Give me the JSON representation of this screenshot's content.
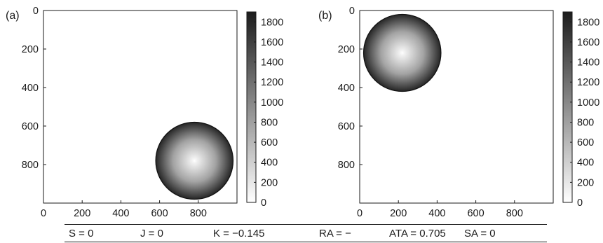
{
  "chart_data": [
    {
      "type": "heatmap",
      "panel_label": "(a)",
      "title": "",
      "xlabel": "",
      "ylabel": "",
      "xlim": [
        0,
        1000
      ],
      "ylim": [
        1000,
        0
      ],
      "x_ticks": [
        0,
        200,
        400,
        600,
        800
      ],
      "y_ticks": [
        0,
        200,
        400,
        600,
        800
      ],
      "disk": {
        "center_x": 780,
        "center_y": 780,
        "radius": 200,
        "center_value": 0,
        "edge_value": 1900,
        "outside_value": 0
      },
      "colorbar": {
        "ticks": [
          0,
          200,
          400,
          600,
          800,
          1000,
          1200,
          1400,
          1600,
          1800
        ],
        "range": [
          0,
          1900
        ],
        "colormap": "gray-reversed"
      }
    },
    {
      "type": "heatmap",
      "panel_label": "(b)",
      "title": "",
      "xlabel": "",
      "ylabel": "",
      "xlim": [
        0,
        1000
      ],
      "ylim": [
        1000,
        0
      ],
      "x_ticks": [
        0,
        200,
        400,
        600,
        800
      ],
      "y_ticks": [
        0,
        200,
        400,
        600,
        800
      ],
      "disk": {
        "center_x": 220,
        "center_y": 220,
        "radius": 200,
        "center_value": 0,
        "edge_value": 1900,
        "outside_value": 0
      },
      "colorbar": {
        "ticks": [
          0,
          200,
          400,
          600,
          800,
          1000,
          1200,
          1400,
          1600,
          1800
        ],
        "range": [
          0,
          1900
        ],
        "colormap": "gray-reversed"
      }
    }
  ],
  "metrics": [
    {
      "label": "S",
      "value": "0"
    },
    {
      "label": "J",
      "value": "0"
    },
    {
      "label": "K",
      "value": "−0.145"
    },
    {
      "label": "RA",
      "value": "−"
    },
    {
      "label": "ATA",
      "value": "0.705"
    },
    {
      "label": "SA",
      "value": "0"
    }
  ],
  "colors": {
    "axis": "#1a1a1a",
    "disk_center": "#f2f2f2",
    "disk_edge": "#262626"
  }
}
